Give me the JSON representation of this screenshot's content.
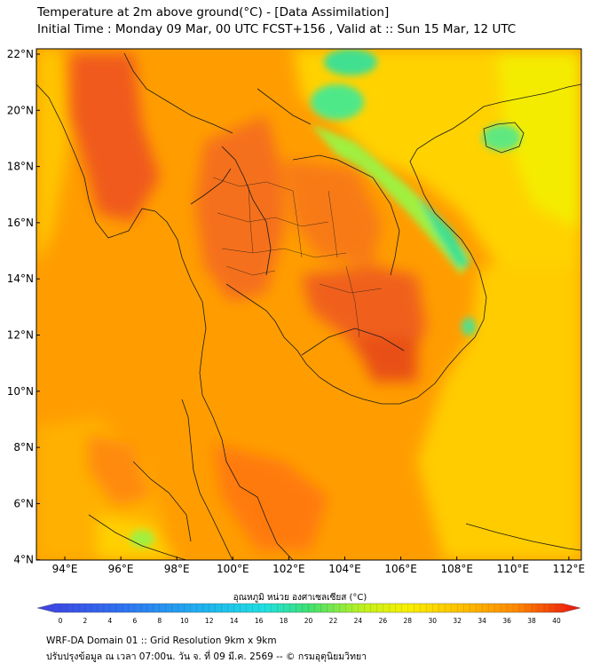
{
  "header": {
    "title": "Temperature at 2m above ground(°C) - [Data Assimilation]",
    "subtitle": "Initial Time : Monday 09 Mar, 00 UTC FCST+156 , Valid at :: Sun 15 Mar, 12 UTC"
  },
  "map": {
    "lat_labels": [
      "22°N",
      "20°N",
      "18°N",
      "16°N",
      "14°N",
      "12°N",
      "10°N",
      "8°N",
      "6°N",
      "4°N"
    ],
    "lon_labels": [
      "94°E",
      "96°E",
      "98°E",
      "100°E",
      "102°E",
      "104°E",
      "106°E",
      "108°E",
      "110°E",
      "112°E"
    ],
    "colors": {
      "background": "#ff9900",
      "hot": "#f05a1e",
      "warm": "#ffc000",
      "mild": "#f2f000",
      "cool": "#30e0a0",
      "border": "#1a1a1a"
    }
  },
  "colorbar": {
    "title": "อุณหภูมิ หน่วย องศาเซลเซียส (°C)",
    "ticks": [
      "0",
      "2",
      "4",
      "6",
      "8",
      "10",
      "12",
      "14",
      "16",
      "18",
      "20",
      "22",
      "24",
      "26",
      "28",
      "30",
      "32",
      "34",
      "36",
      "38",
      "40"
    ],
    "range": [
      0,
      40
    ]
  },
  "footer": {
    "line1": "WRF-DA Domain 01 :: Grid Resolution 9km x 9km",
    "line2": "ปรับปรุงข้อมูล ณ เวลา 07:00น. วัน จ. ที่ 09 มี.ค. 2569 -- © กรมอุตุนิยมวิทยา"
  }
}
